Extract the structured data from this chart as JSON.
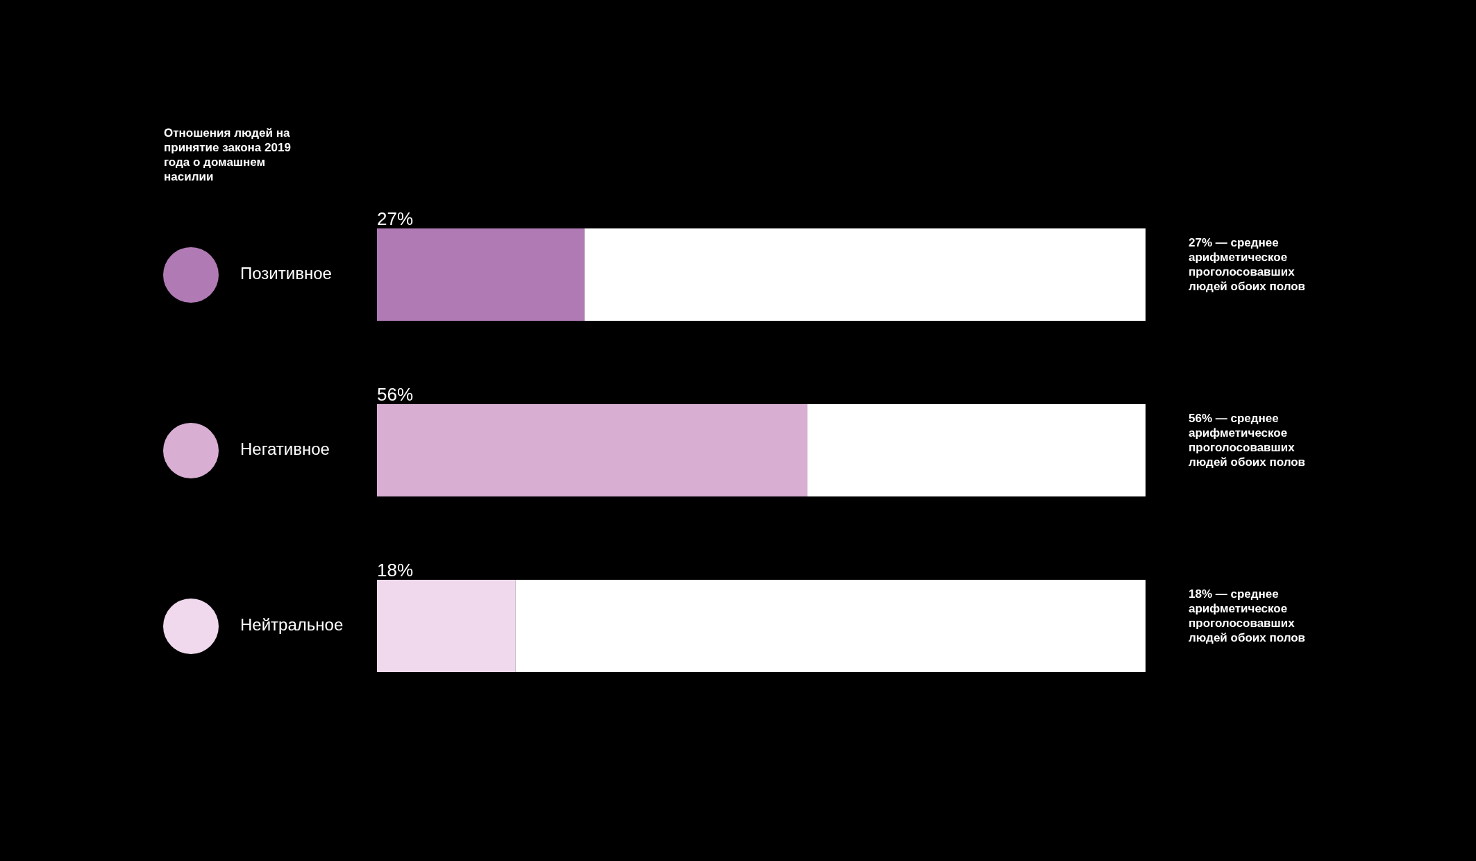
{
  "chart_data": {
    "type": "bar",
    "orientation": "horizontal",
    "stacked": true,
    "title": "Отношения людей на принятие закона 2019 года о домашнем насилии",
    "categories": [
      "Позитивное",
      "Негативное",
      "Нейтральное"
    ],
    "series": [
      {
        "colors": [
          "#b07ab4",
          "#d8aed3",
          "#f0d9ec"
        ],
        "values": [
          27,
          56,
          18
        ],
        "value_labels": [
          "27%",
          "56%",
          "18%"
        ]
      },
      {
        "color": "#ffffff",
        "values": [
          73,
          44,
          82
        ]
      }
    ],
    "xlim": [
      0,
      100
    ],
    "annotations": [
      "27% — среднее арифметическое проголосовавших людей обоих полов",
      "56% — среднее арифметическое проголосовавших людей обоих полов",
      "18% — среднее арифметическое проголосовавших людей обоих полов"
    ]
  }
}
